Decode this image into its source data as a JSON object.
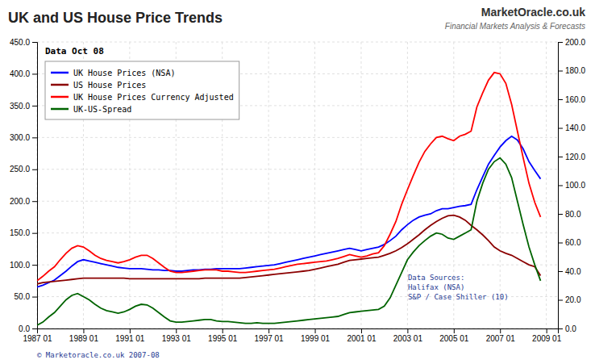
{
  "chart_data": {
    "type": "line",
    "title": "UK and US House Price Trends",
    "annotations": [
      "Data Oct 08",
      "© Marketoracle.co.uk  2007-08",
      "Data Sources:\nHalifax (NSA)\nS&P / Case Shiller (10)",
      "MarketOracle.co.uk",
      "Financial Markets Analysis & Forecasts"
    ],
    "x": [
      1987.0,
      1987.25,
      1987.5,
      1987.75,
      1988.0,
      1988.25,
      1988.5,
      1988.75,
      1989.0,
      1989.25,
      1989.5,
      1989.75,
      1990.0,
      1990.25,
      1990.5,
      1990.75,
      1991.0,
      1991.25,
      1991.5,
      1991.75,
      1992.0,
      1992.25,
      1992.5,
      1992.75,
      1993.0,
      1993.25,
      1993.5,
      1993.75,
      1994.0,
      1994.25,
      1994.5,
      1994.75,
      1995.0,
      1995.25,
      1995.5,
      1995.75,
      1996.0,
      1996.25,
      1996.5,
      1996.75,
      1997.0,
      1997.25,
      1997.5,
      1997.75,
      1998.0,
      1998.25,
      1998.5,
      1998.75,
      1999.0,
      1999.25,
      1999.5,
      1999.75,
      2000.0,
      2000.25,
      2000.5,
      2000.75,
      2001.0,
      2001.25,
      2001.5,
      2001.75,
      2002.0,
      2002.25,
      2002.5,
      2002.75,
      2003.0,
      2003.25,
      2003.5,
      2003.75,
      2004.0,
      2004.25,
      2004.5,
      2004.75,
      2005.0,
      2005.25,
      2005.5,
      2005.75,
      2006.0,
      2006.25,
      2006.5,
      2006.75,
      2007.0,
      2007.25,
      2007.5,
      2007.75,
      2008.0,
      2008.25,
      2008.5,
      2008.75
    ],
    "series": [
      {
        "name": "UK House Prices (NSA)",
        "color": "#0000FF",
        "values": [
          65,
          68,
          72,
          76,
          83,
          90,
          98,
          105,
          108,
          106,
          104,
          102,
          100,
          98,
          96,
          95,
          94,
          94,
          94,
          93,
          92,
          92,
          91,
          91,
          90,
          90,
          91,
          92,
          92,
          93,
          93,
          94,
          94,
          94,
          94,
          94,
          95,
          96,
          97,
          98,
          99,
          100,
          102,
          104,
          106,
          108,
          110,
          112,
          114,
          116,
          118,
          120,
          122,
          124,
          126,
          124,
          122,
          124,
          126,
          128,
          132,
          138,
          145,
          155,
          163,
          170,
          175,
          178,
          180,
          185,
          188,
          188,
          190,
          192,
          193,
          195,
          218,
          238,
          258,
          272,
          285,
          295,
          302,
          296,
          282,
          262,
          248,
          235
        ]
      },
      {
        "name": "US House Prices",
        "color": "#8B0000",
        "values": [
          70,
          72,
          73,
          74,
          75,
          76,
          77,
          78,
          79,
          79,
          79,
          79,
          79,
          79,
          79,
          79,
          78,
          78,
          78,
          78,
          78,
          78,
          78,
          78,
          78,
          78,
          78,
          78,
          78,
          79,
          79,
          79,
          79,
          79,
          79,
          79,
          80,
          81,
          82,
          83,
          84,
          85,
          86,
          87,
          88,
          89,
          90,
          91,
          93,
          95,
          97,
          99,
          101,
          104,
          107,
          108,
          109,
          110,
          111,
          112,
          115,
          118,
          122,
          127,
          133,
          140,
          147,
          155,
          162,
          168,
          173,
          177,
          178,
          175,
          170,
          162,
          155,
          147,
          138,
          128,
          122,
          118,
          115,
          110,
          105,
          100,
          97,
          83
        ]
      },
      {
        "name": "UK House Prices Currency Adjusted",
        "color": "#FF0000",
        "values": [
          75,
          82,
          90,
          97,
          108,
          118,
          126,
          130,
          128,
          122,
          115,
          110,
          107,
          105,
          103,
          105,
          108,
          112,
          115,
          115,
          110,
          103,
          96,
          90,
          88,
          88,
          89,
          90,
          91,
          92,
          92,
          92,
          90,
          90,
          89,
          88,
          88,
          89,
          90,
          91,
          92,
          93,
          95,
          97,
          99,
          101,
          102,
          103,
          104,
          105,
          106,
          108,
          110,
          113,
          116,
          114,
          112,
          114,
          117,
          119,
          130,
          148,
          168,
          195,
          218,
          240,
          261,
          278,
          290,
          300,
          302,
          298,
          295,
          302,
          305,
          310,
          348,
          370,
          390,
          402,
          400,
          385,
          352,
          310,
          268,
          228,
          198,
          175
        ]
      },
      {
        "name": "UK-US-Spread",
        "color": "#006400",
        "values": [
          5,
          10,
          18,
          25,
          35,
          45,
          52,
          55,
          50,
          45,
          38,
          32,
          28,
          26,
          24,
          26,
          30,
          35,
          38,
          37,
          32,
          25,
          18,
          12,
          10,
          10,
          11,
          12,
          13,
          14,
          14,
          12,
          11,
          11,
          10,
          9,
          8,
          8,
          9,
          8,
          8,
          8,
          9,
          10,
          11,
          12,
          13,
          14,
          15,
          16,
          17,
          18,
          19,
          22,
          25,
          26,
          27,
          28,
          29,
          30,
          35,
          48,
          68,
          88,
          108,
          120,
          130,
          138,
          145,
          150,
          148,
          142,
          140,
          145,
          150,
          155,
          200,
          228,
          250,
          262,
          268,
          258,
          237,
          200,
          163,
          128,
          100,
          75
        ]
      }
    ],
    "xlim": [
      1987.0,
      2009.5
    ],
    "xticks": [
      {
        "value": 1987.0,
        "label": "1987 01"
      },
      {
        "value": 1989.0,
        "label": "1989 01"
      },
      {
        "value": 1991.0,
        "label": "1991 01"
      },
      {
        "value": 1993.0,
        "label": "1993 01"
      },
      {
        "value": 1995.0,
        "label": "1995 01"
      },
      {
        "value": 1997.0,
        "label": "1997 01"
      },
      {
        "value": 1999.0,
        "label": "1999 01"
      },
      {
        "value": 2001.0,
        "label": "2001 01"
      },
      {
        "value": 2003.0,
        "label": "2003 01"
      },
      {
        "value": 2005.0,
        "label": "2005 01"
      },
      {
        "value": 2007.0,
        "label": "2007 01"
      },
      {
        "value": 2009.0,
        "label": "2009 01"
      }
    ],
    "ylim": [
      0.0,
      450.0
    ],
    "yticks": [
      {
        "value": 0.0,
        "label": "0.0"
      },
      {
        "value": 50.0,
        "label": "50.0"
      },
      {
        "value": 100.0,
        "label": "100.0"
      },
      {
        "value": 150.0,
        "label": "150.0"
      },
      {
        "value": 200.0,
        "label": "200.0"
      },
      {
        "value": 250.0,
        "label": "250.0"
      },
      {
        "value": 300.0,
        "label": "300.0"
      },
      {
        "value": 350.0,
        "label": "350.0"
      },
      {
        "value": 400.0,
        "label": "400.0"
      },
      {
        "value": 450.0,
        "label": "450.0"
      }
    ],
    "y2lim": [
      0.0,
      200.0
    ],
    "y2ticks": [
      {
        "value": 0.0,
        "label": "0.0"
      },
      {
        "value": 20.0,
        "label": "20.0"
      },
      {
        "value": 40.0,
        "label": "40.0"
      },
      {
        "value": 60.0,
        "label": "60.0"
      },
      {
        "value": 80.0,
        "label": "80.0"
      },
      {
        "value": 100.0,
        "label": "100.0"
      },
      {
        "value": 120.0,
        "label": "120.0"
      },
      {
        "value": 140.0,
        "label": "140.0"
      },
      {
        "value": 160.0,
        "label": "160.0"
      },
      {
        "value": 180.0,
        "label": "180.0"
      },
      {
        "value": 200.0,
        "label": "200.0"
      }
    ],
    "grid": true,
    "legend": "top-left"
  }
}
